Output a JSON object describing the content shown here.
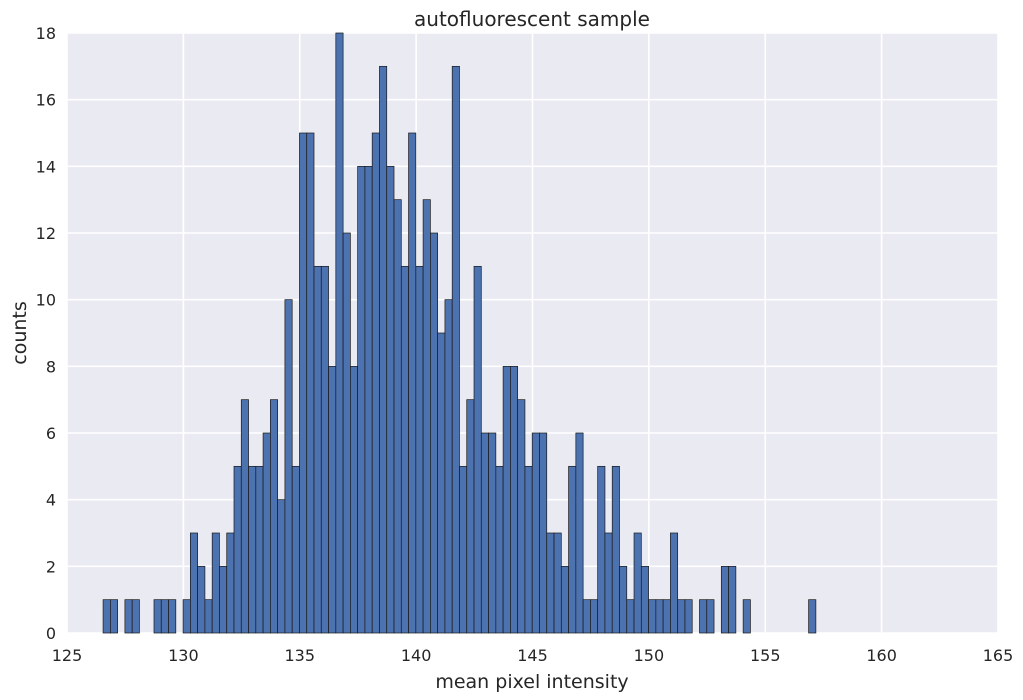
{
  "chart_data": {
    "type": "bar",
    "title": "autofluorescent sample",
    "xlabel": "mean pixel intensity",
    "ylabel": "counts",
    "xlim": [
      125,
      165
    ],
    "ylim": [
      0,
      18
    ],
    "xticks": [
      "125",
      "130",
      "135",
      "140",
      "145",
      "150",
      "155",
      "160",
      "165"
    ],
    "yticks": [
      "0",
      "2",
      "4",
      "6",
      "8",
      "10",
      "12",
      "14",
      "16",
      "18"
    ],
    "grid": true,
    "bin_start": 126.55,
    "bin_width": 0.3125,
    "values": [
      1,
      1,
      0,
      1,
      1,
      0,
      0,
      1,
      1,
      1,
      0,
      1,
      3,
      2,
      1,
      3,
      2,
      3,
      5,
      7,
      5,
      5,
      6,
      7,
      4,
      10,
      5,
      15,
      15,
      11,
      11,
      8,
      18,
      12,
      8,
      14,
      14,
      15,
      17,
      14,
      13,
      11,
      15,
      11,
      13,
      12,
      9,
      10,
      17,
      5,
      7,
      11,
      6,
      6,
      5,
      8,
      8,
      7,
      5,
      6,
      6,
      3,
      3,
      2,
      5,
      6,
      1,
      1,
      5,
      3,
      5,
      2,
      1,
      3,
      2,
      1,
      1,
      1,
      3,
      1,
      1,
      0,
      1,
      1,
      0,
      2,
      2,
      0,
      1,
      0,
      0,
      0,
      0,
      0,
      0,
      0,
      0,
      1
    ],
    "colors": {
      "bar": "#4c72b0",
      "bar_edge": "#1a1a1a",
      "plot_bg": "#eaeaf2",
      "grid": "#ffffff"
    }
  }
}
